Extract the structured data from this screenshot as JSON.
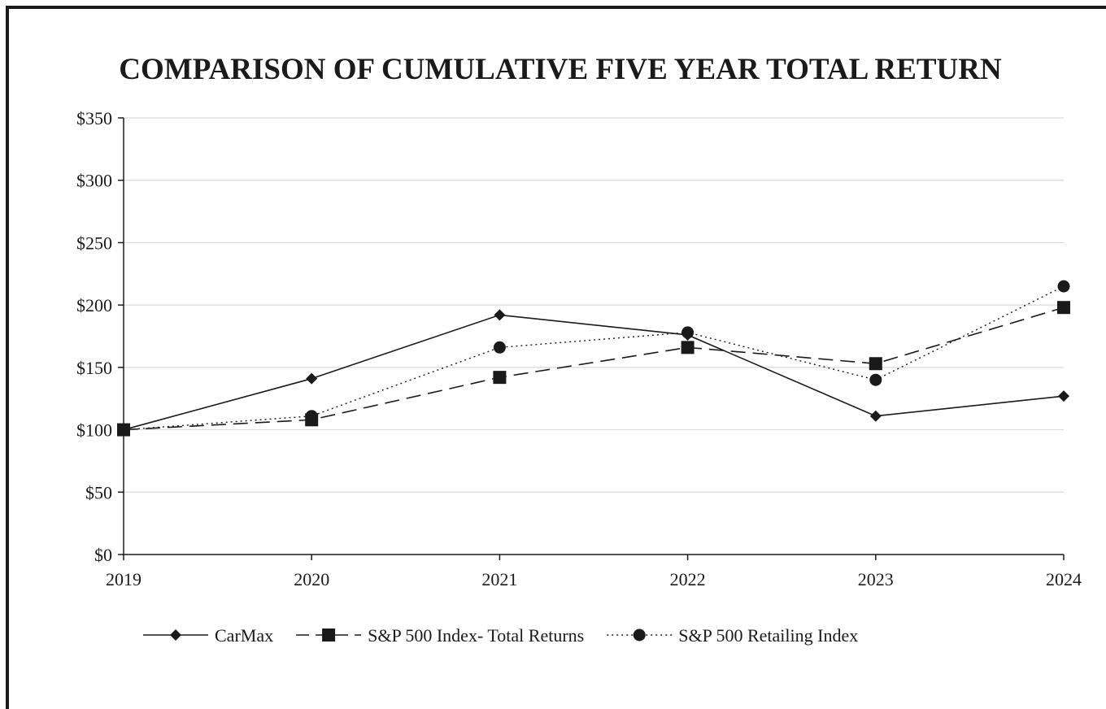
{
  "chart_data": {
    "type": "line",
    "title": "COMPARISON OF CUMULATIVE FIVE YEAR TOTAL RETURN",
    "xlabel": "",
    "ylabel": "",
    "x": [
      "2019",
      "2020",
      "2021",
      "2022",
      "2023",
      "2024"
    ],
    "ylim": [
      0,
      350
    ],
    "yticks": [
      0,
      50,
      100,
      150,
      200,
      250,
      300,
      350
    ],
    "ytick_labels": [
      "$0",
      "$50",
      "$100",
      "$150",
      "$200",
      "$250",
      "$300",
      "$350"
    ],
    "grid": true,
    "legend_position": "bottom",
    "series": [
      {
        "name": "CarMax",
        "values": [
          100,
          141,
          192,
          176,
          111,
          127
        ],
        "line": "solid",
        "marker": "diamond"
      },
      {
        "name": "S&P 500 Index- Total Returns",
        "values": [
          100,
          108,
          142,
          166,
          153,
          198
        ],
        "line": "dashed",
        "marker": "square"
      },
      {
        "name": "S&P 500 Retailing Index",
        "values": [
          100,
          111,
          166,
          178,
          140,
          215
        ],
        "line": "dotted",
        "marker": "circle"
      }
    ],
    "colors": {
      "series": "#1a1a1a",
      "grid": "#d9d9d9",
      "axis": "#1a1a1a"
    }
  }
}
